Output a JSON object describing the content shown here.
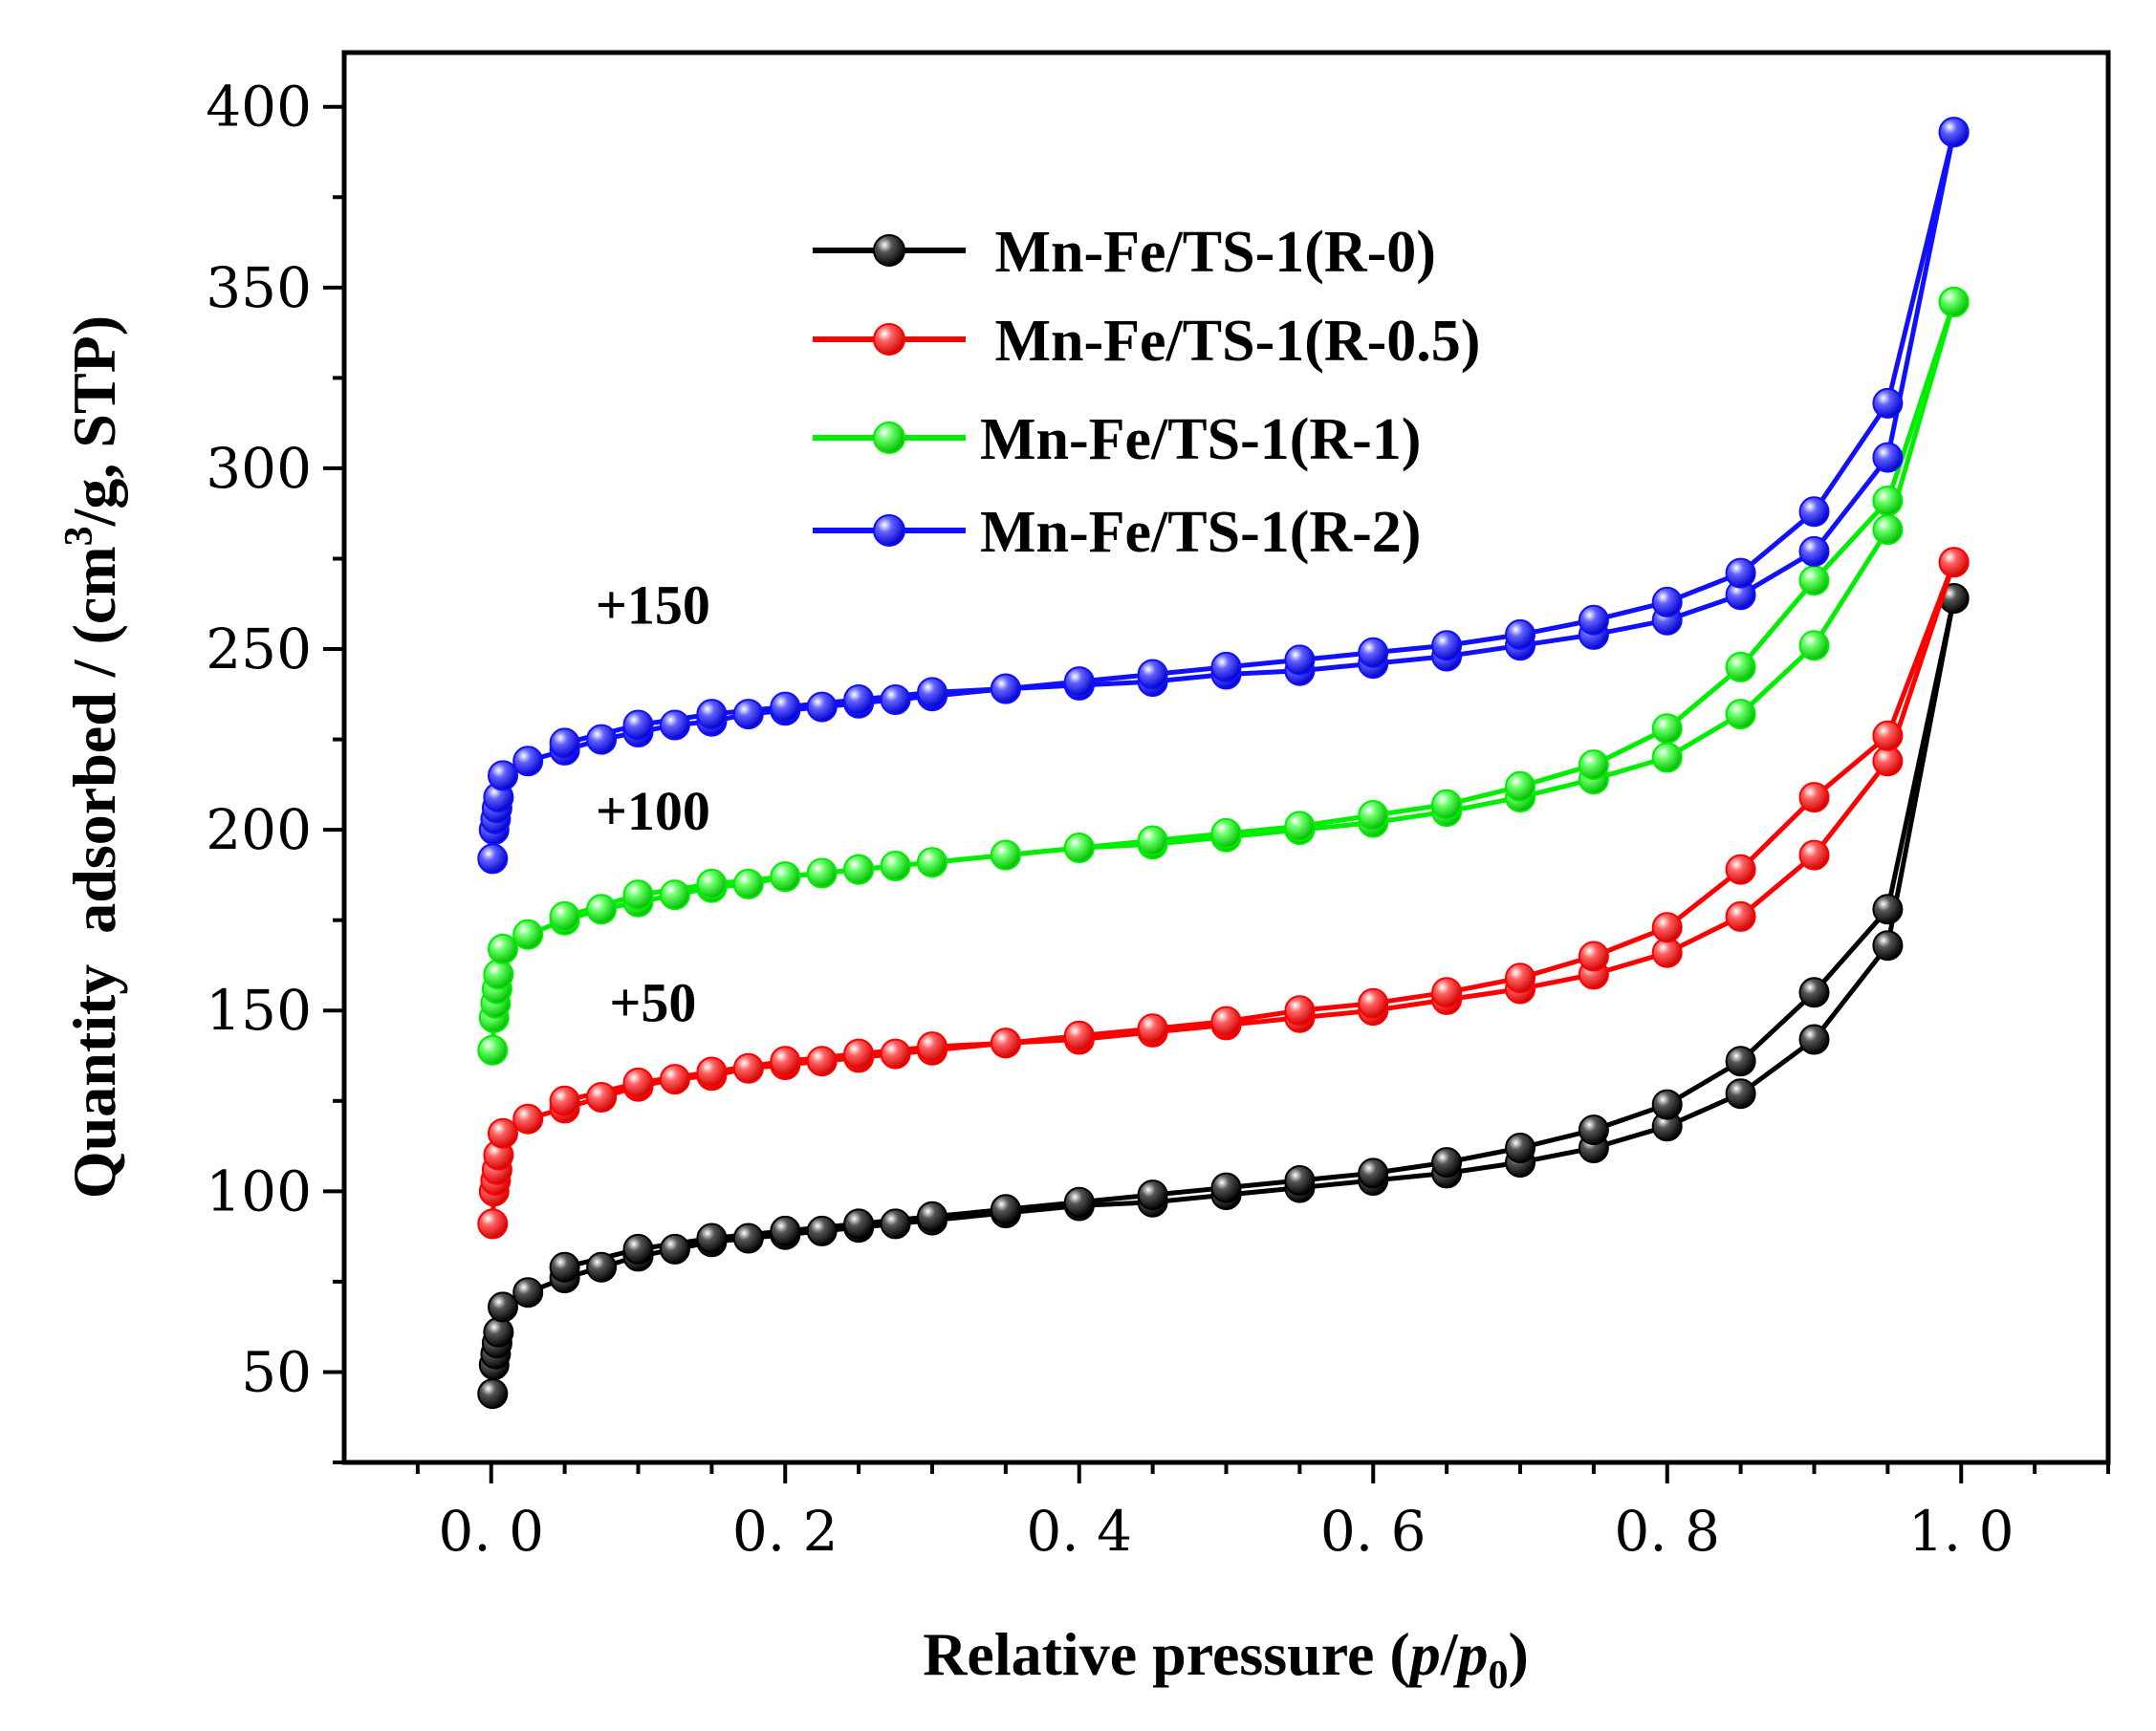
{
  "chart_data": {
    "type": "line",
    "xlabel_main": "Relative pressure (",
    "xlabel_p": "p",
    "xlabel_slash": "/",
    "xlabel_p0": "p",
    "xlabel_sub": "0",
    "xlabel_close": ")",
    "ylabel_main": "Quantity  adsorbed / (cm",
    "ylabel_sup": "3",
    "ylabel_end": "/g, STP)",
    "xlim": [
      -0.1,
      1.1
    ],
    "ylim": [
      25,
      415
    ],
    "xticks": [
      0.0,
      0.2,
      0.4,
      0.6,
      0.8,
      1.0
    ],
    "xtick_labels": [
      "0. 0",
      "0. 2",
      "0. 4",
      "0. 6",
      "0. 8",
      "1. 0"
    ],
    "yticks": [
      50,
      100,
      150,
      200,
      250,
      300,
      350,
      400
    ],
    "ytick_labels": [
      "50",
      "100",
      "150",
      "200",
      "250",
      "300",
      "350",
      "400"
    ],
    "legend_position": "top-center",
    "annotations": [
      {
        "text": "+150",
        "x": 0.11,
        "y": 257
      },
      {
        "text": "+100",
        "x": 0.11,
        "y": 200
      },
      {
        "text": "+50",
        "x": 0.11,
        "y": 147
      }
    ],
    "series": [
      {
        "name": " Mn-Fe/TS-1(R-0)",
        "color": "#000000",
        "adsorption": {
          "x": [
            0.001,
            0.002,
            0.003,
            0.004,
            0.005,
            0.008,
            0.025,
            0.05,
            0.075,
            0.1,
            0.125,
            0.15,
            0.175,
            0.2,
            0.225,
            0.25,
            0.275,
            0.3,
            0.35,
            0.4,
            0.45,
            0.5,
            0.55,
            0.6,
            0.65,
            0.7,
            0.75,
            0.8,
            0.85,
            0.9,
            0.95,
            0.995
          ],
          "y": [
            44,
            52,
            55,
            58,
            61,
            68,
            72,
            76,
            79,
            82,
            84,
            86,
            87,
            88,
            89,
            90,
            91,
            92,
            94,
            96,
            97,
            99,
            101,
            103,
            105,
            108,
            112,
            118,
            127,
            142,
            168,
            264
          ]
        },
        "desorption": {
          "x": [
            0.995,
            0.95,
            0.9,
            0.85,
            0.8,
            0.75,
            0.7,
            0.65,
            0.6,
            0.55,
            0.5,
            0.45,
            0.4,
            0.35,
            0.3,
            0.25,
            0.2,
            0.15,
            0.1,
            0.05
          ],
          "y": [
            264,
            178,
            155,
            136,
            124,
            117,
            112,
            108,
            105,
            103,
            101,
            99,
            97,
            95,
            93,
            91,
            89,
            87,
            84,
            79
          ]
        }
      },
      {
        "name": " Mn-Fe/TS-1(R-0.5)",
        "color": "#ff0000",
        "adsorption": {
          "x": [
            0.001,
            0.002,
            0.003,
            0.004,
            0.005,
            0.008,
            0.025,
            0.05,
            0.075,
            0.1,
            0.125,
            0.15,
            0.175,
            0.2,
            0.225,
            0.25,
            0.275,
            0.3,
            0.35,
            0.4,
            0.45,
            0.5,
            0.55,
            0.6,
            0.65,
            0.7,
            0.75,
            0.8,
            0.85,
            0.9,
            0.95,
            0.995
          ],
          "y": [
            91,
            100,
            103,
            106,
            110,
            116,
            120,
            123,
            126,
            129,
            131,
            132,
            134,
            135,
            136,
            137,
            138,
            139,
            141,
            142,
            144,
            146,
            148,
            150,
            153,
            156,
            160,
            166,
            176,
            193,
            219,
            274
          ]
        },
        "desorption": {
          "x": [
            0.995,
            0.95,
            0.9,
            0.85,
            0.8,
            0.75,
            0.7,
            0.65,
            0.6,
            0.55,
            0.5,
            0.45,
            0.4,
            0.35,
            0.3,
            0.25,
            0.2,
            0.15,
            0.1,
            0.05
          ],
          "y": [
            274,
            226,
            209,
            189,
            173,
            165,
            159,
            155,
            152,
            150,
            147,
            145,
            143,
            141,
            140,
            138,
            136,
            133,
            130,
            125
          ]
        }
      },
      {
        "name": "Mn-Fe/TS-1(R-1)",
        "color": "#00ee00",
        "adsorption": {
          "x": [
            0.001,
            0.002,
            0.003,
            0.004,
            0.005,
            0.008,
            0.025,
            0.05,
            0.075,
            0.1,
            0.125,
            0.15,
            0.175,
            0.2,
            0.225,
            0.25,
            0.275,
            0.3,
            0.35,
            0.4,
            0.45,
            0.5,
            0.55,
            0.6,
            0.65,
            0.7,
            0.75,
            0.8,
            0.85,
            0.9,
            0.95,
            0.995
          ],
          "y": [
            139,
            148,
            152,
            156,
            160,
            167,
            171,
            175,
            178,
            180,
            182,
            184,
            185,
            187,
            188,
            189,
            190,
            191,
            193,
            195,
            196,
            198,
            200,
            202,
            205,
            209,
            214,
            220,
            232,
            251,
            283,
            346
          ]
        },
        "desorption": {
          "x": [
            0.995,
            0.95,
            0.9,
            0.85,
            0.8,
            0.75,
            0.7,
            0.65,
            0.6,
            0.55,
            0.5,
            0.45,
            0.4,
            0.35,
            0.3,
            0.25,
            0.2,
            0.15,
            0.1,
            0.05
          ],
          "y": [
            346,
            291,
            269,
            245,
            228,
            218,
            212,
            207,
            204,
            201,
            199,
            197,
            195,
            193,
            191,
            189,
            187,
            185,
            182,
            176
          ]
        }
      },
      {
        "name": "Mn-Fe/TS-1(R-2)",
        "color": "#1010ff",
        "adsorption": {
          "x": [
            0.001,
            0.002,
            0.003,
            0.004,
            0.005,
            0.008,
            0.025,
            0.05,
            0.075,
            0.1,
            0.125,
            0.15,
            0.175,
            0.2,
            0.225,
            0.25,
            0.275,
            0.3,
            0.35,
            0.4,
            0.45,
            0.5,
            0.55,
            0.6,
            0.65,
            0.7,
            0.75,
            0.8,
            0.85,
            0.9,
            0.95,
            0.995
          ],
          "y": [
            192,
            200,
            203,
            206,
            209,
            215,
            219,
            222,
            225,
            227,
            229,
            230,
            232,
            233,
            234,
            235,
            236,
            237,
            239,
            240,
            241,
            243,
            244,
            246,
            248,
            251,
            254,
            258,
            265,
            277,
            303,
            393
          ]
        },
        "desorption": {
          "x": [
            0.995,
            0.95,
            0.9,
            0.85,
            0.8,
            0.75,
            0.7,
            0.65,
            0.6,
            0.55,
            0.5,
            0.45,
            0.4,
            0.35,
            0.3,
            0.25,
            0.2,
            0.15,
            0.1,
            0.05
          ],
          "y": [
            393,
            318,
            288,
            271,
            263,
            258,
            254,
            251,
            249,
            247,
            245,
            243,
            241,
            239,
            238,
            236,
            234,
            232,
            229,
            224
          ]
        }
      }
    ]
  }
}
